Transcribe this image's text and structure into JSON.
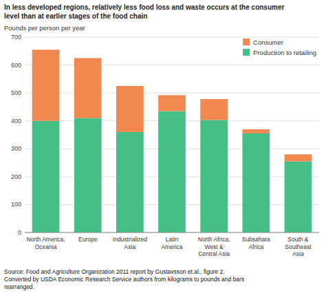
{
  "chart_data": {
    "type": "bar",
    "stacked": true,
    "title": "In less developed regions, relatively less food loss and waste occurs at the consumer\nlevel than at earlier stages of the food chain",
    "ylabel": "Pounds per person per year",
    "annotations": [
      "Source: Food and Agriculture Organization 2011 report by Gustavsson et.al., figure 2.\nConverted by USDA Economic Research Service authors from kilograms to pounds and bars\nrearranged."
    ],
    "categories": [
      "North America,\nOceania",
      "Europe",
      "Industrialized\nAsia",
      "Latin\nAmerica",
      "North Africa,\nWest &\nCentral Asia",
      "Subsahara\nAfrica",
      "South &\nSoutheast\nAsia"
    ],
    "series": [
      {
        "name": "Production to retailing",
        "color": "#45bf85",
        "values": [
          400,
          410,
          360,
          435,
          403,
          355,
          255
        ]
      },
      {
        "name": "Consumer",
        "color": "#f08850",
        "values": [
          255,
          215,
          165,
          57,
          75,
          15,
          25
        ]
      }
    ],
    "ylim": [
      0,
      700
    ],
    "yticks": [
      0,
      100,
      200,
      300,
      400,
      500,
      600,
      700
    ],
    "grid": true,
    "legend": "upper right"
  }
}
